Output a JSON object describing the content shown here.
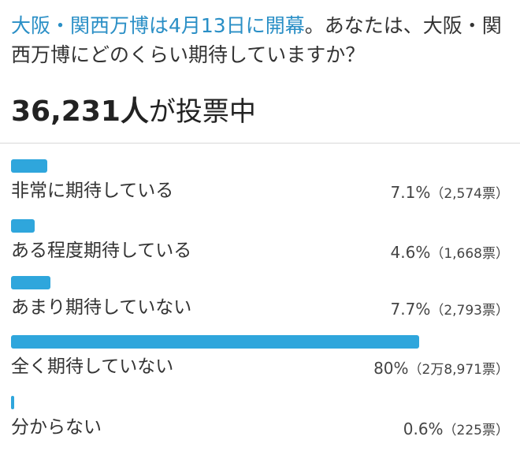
{
  "question": {
    "link_text": "大阪・関西万博は4月13日に開幕",
    "rest_text": "。あなたは、大阪・関西万博にどのくらい期待していますか？"
  },
  "total": {
    "count": "36,231人",
    "suffix": "が投票中"
  },
  "accent_color": "#2fa6dc",
  "options": [
    {
      "label": "非常に期待している",
      "percent_text": "7.1%",
      "votes_text": "（2,574票）",
      "percent": 7.1
    },
    {
      "label": "ある程度期待している",
      "percent_text": "4.6%",
      "votes_text": "（1,668票）",
      "percent": 4.6
    },
    {
      "label": "あまり期待していない",
      "percent_text": "7.7%",
      "votes_text": "（2,793票）",
      "percent": 7.7
    },
    {
      "label": "全く期待していない",
      "percent_text": "80%",
      "votes_text": "（2万8,971票）",
      "percent": 80
    },
    {
      "label": "分からない",
      "percent_text": "0.6%",
      "votes_text": "（225票）",
      "percent": 0.6
    }
  ]
}
